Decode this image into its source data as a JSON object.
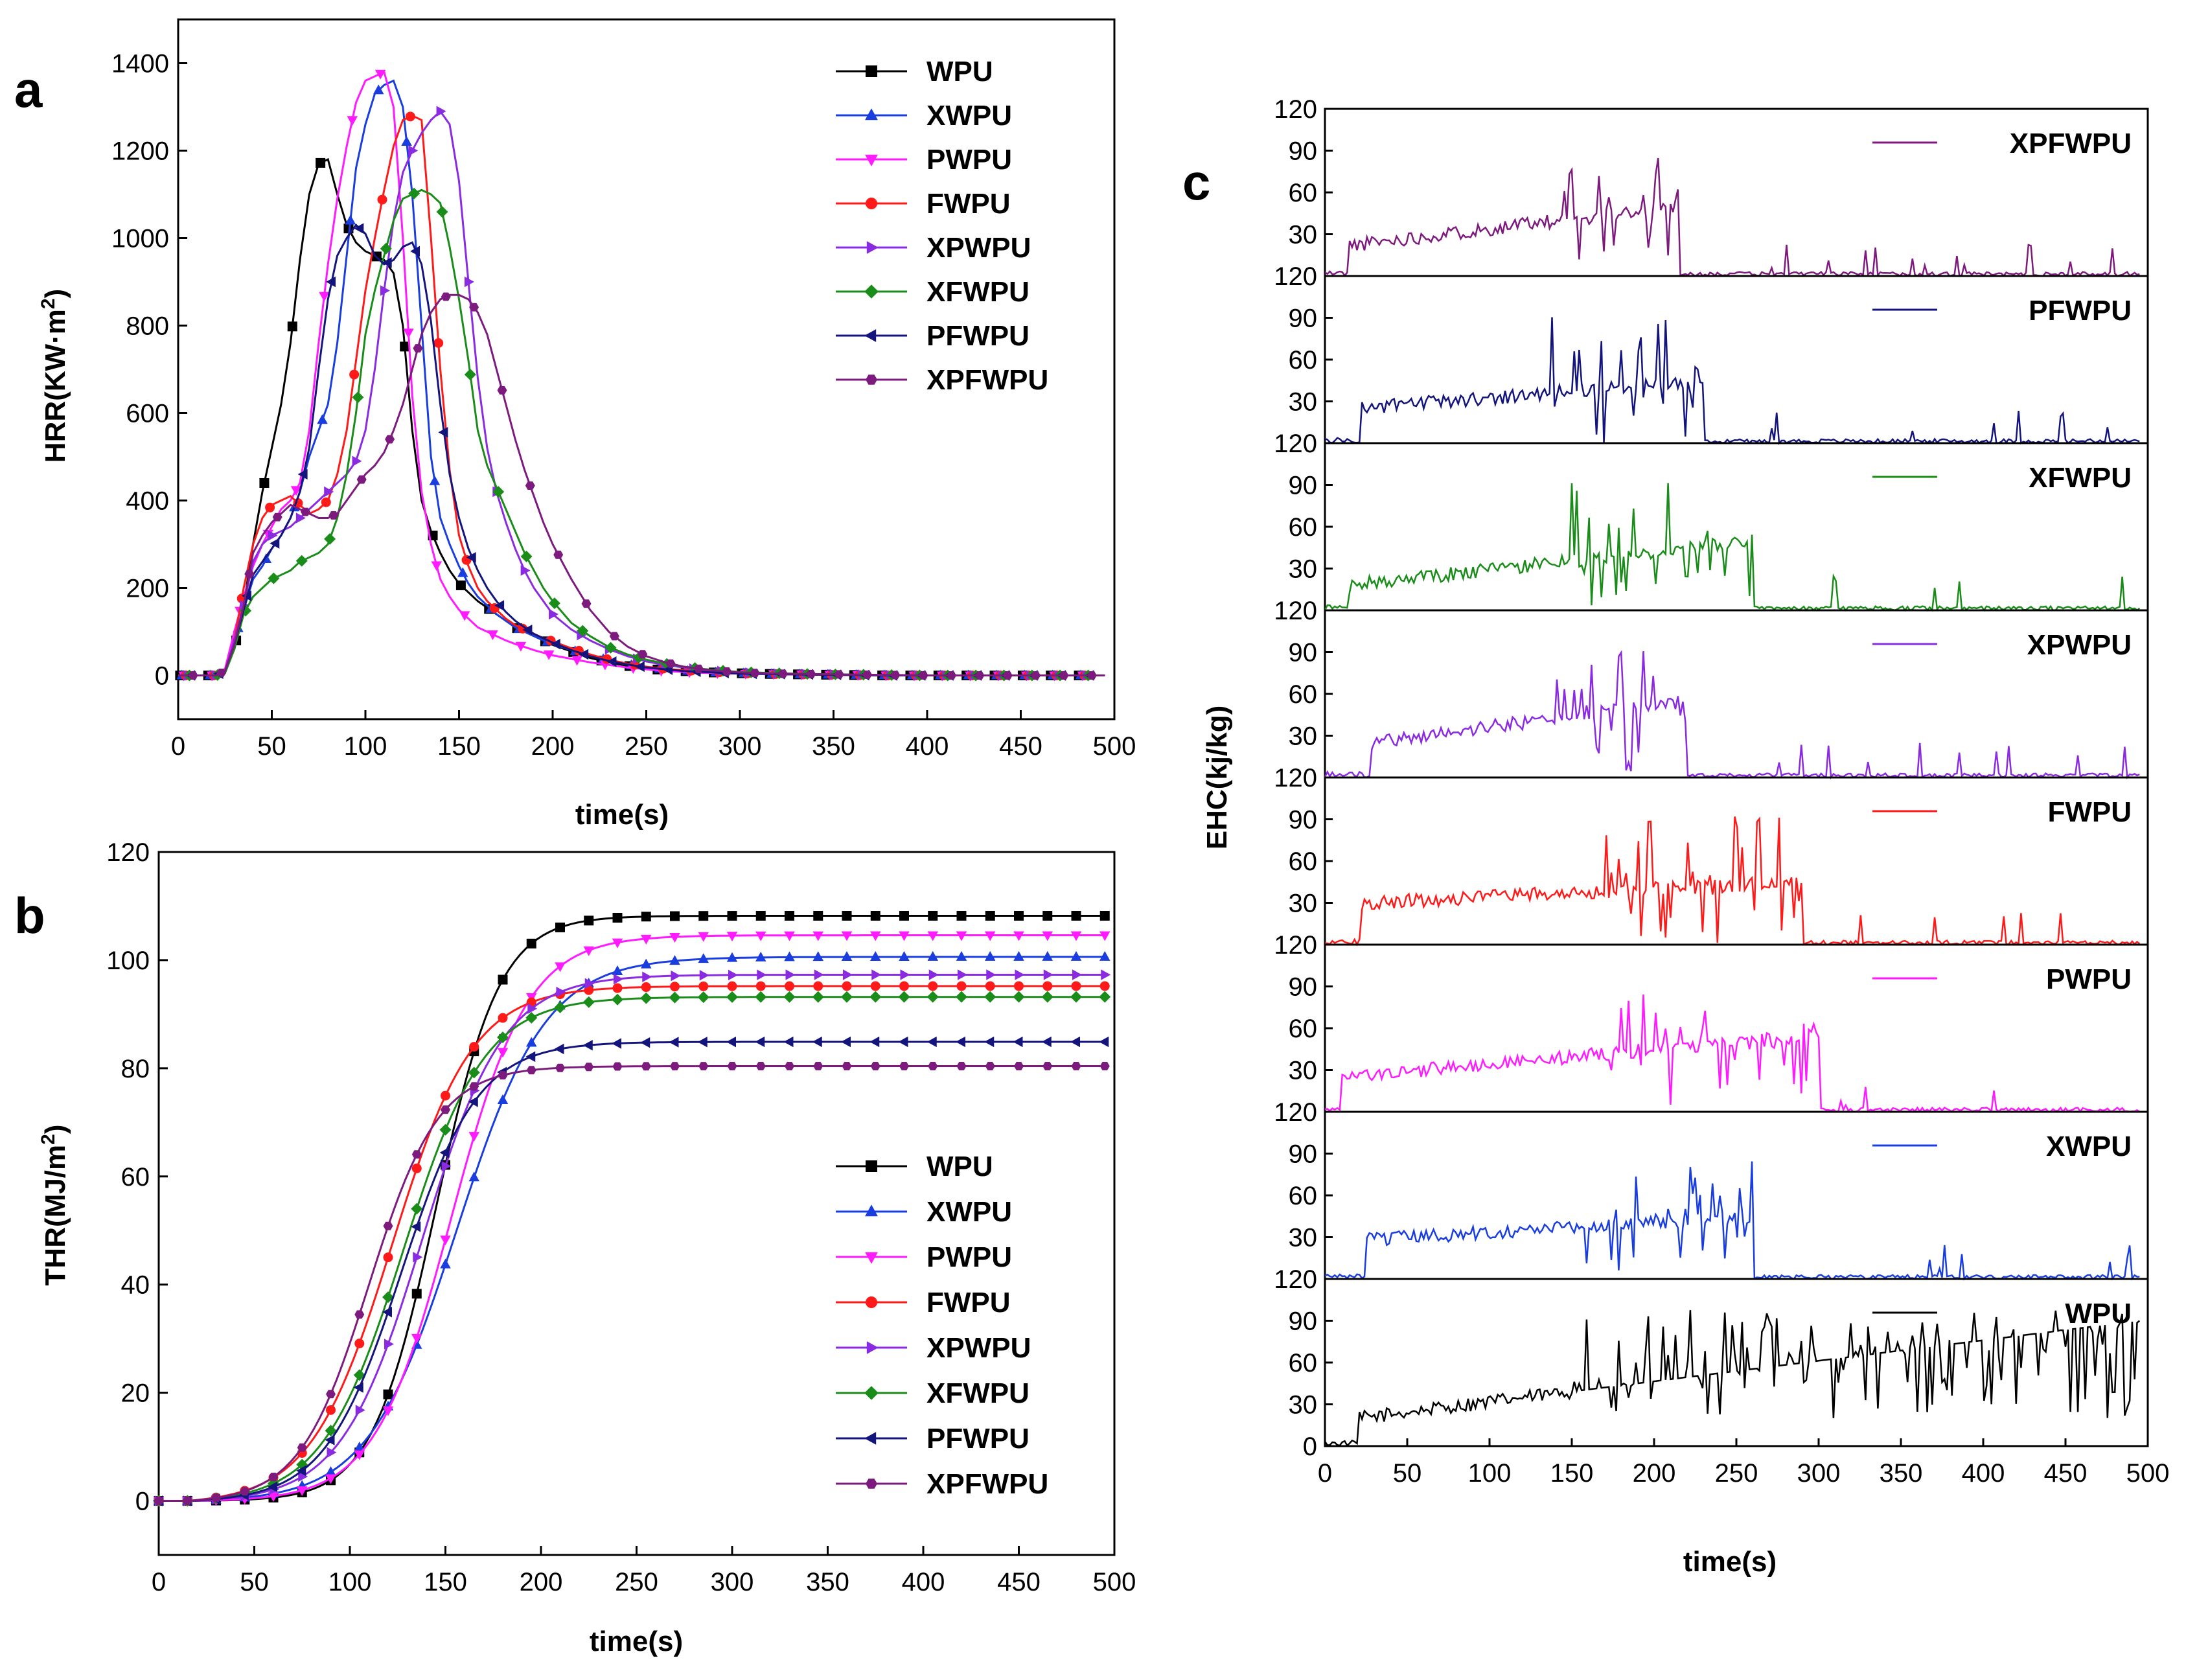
{
  "figure": {
    "panel_labels": [
      "a",
      "b",
      "c"
    ]
  },
  "chart_data": [
    {
      "id": "a",
      "type": "line",
      "xlabel": "time(s)",
      "ylabel": "HRR(KW·m",
      "ylabel_sup": "2",
      "ylabel_close": ")",
      "xlim": [
        0,
        500
      ],
      "ylim": [
        -100,
        1500
      ],
      "xticks": [
        0,
        50,
        100,
        150,
        200,
        250,
        300,
        350,
        400,
        450,
        500
      ],
      "yticks": [
        0,
        200,
        400,
        600,
        800,
        1000,
        1200,
        1400
      ],
      "x": [
        0,
        10,
        20,
        25,
        30,
        35,
        40,
        45,
        50,
        55,
        60,
        65,
        70,
        75,
        80,
        85,
        90,
        95,
        100,
        105,
        110,
        115,
        120,
        125,
        130,
        135,
        140,
        145,
        150,
        155,
        160,
        165,
        170,
        175,
        180,
        185,
        190,
        195,
        200,
        210,
        220,
        230,
        240,
        250,
        260,
        270,
        280,
        290,
        300,
        320,
        340,
        360,
        380,
        400,
        420,
        440,
        460,
        480,
        495
      ],
      "series": [
        {
          "name": "WPU",
          "color": "#000000",
          "marker": "square",
          "values": [
            0,
            0,
            0,
            10,
            60,
            160,
            300,
            420,
            520,
            620,
            760,
            950,
            1100,
            1170,
            1180,
            1100,
            1030,
            990,
            970,
            960,
            950,
            920,
            800,
            560,
            400,
            330,
            280,
            240,
            210,
            190,
            170,
            155,
            140,
            125,
            110,
            100,
            90,
            80,
            70,
            55,
            40,
            30,
            22,
            16,
            12,
            10,
            8,
            6,
            5,
            3,
            2,
            1,
            0,
            0,
            0,
            0,
            0,
            0,
            0
          ]
        },
        {
          "name": "XWPU",
          "color": "#1a3de0",
          "marker": "triangle-up",
          "values": [
            0,
            0,
            0,
            10,
            80,
            150,
            220,
            250,
            290,
            320,
            360,
            420,
            500,
            560,
            620,
            760,
            960,
            1160,
            1260,
            1330,
            1350,
            1360,
            1300,
            1100,
            800,
            500,
            360,
            300,
            250,
            210,
            180,
            160,
            140,
            125,
            110,
            100,
            90,
            80,
            72,
            58,
            45,
            34,
            25,
            18,
            14,
            11,
            8,
            6,
            5,
            3,
            2,
            1,
            0,
            0,
            0,
            0,
            0,
            0,
            0
          ]
        },
        {
          "name": "PWPU",
          "color": "#ff1aff",
          "marker": "triangle-down",
          "values": [
            0,
            0,
            0,
            15,
            100,
            180,
            250,
            300,
            340,
            380,
            400,
            440,
            560,
            760,
            940,
            1090,
            1210,
            1310,
            1360,
            1370,
            1380,
            1300,
            1000,
            640,
            420,
            300,
            220,
            180,
            150,
            130,
            110,
            100,
            90,
            80,
            72,
            65,
            58,
            52,
            46,
            38,
            30,
            24,
            18,
            14,
            10,
            8,
            6,
            5,
            4,
            3,
            2,
            1,
            0,
            0,
            0,
            0,
            0,
            0,
            0
          ]
        },
        {
          "name": "FWPU",
          "color": "#ff1a1a",
          "marker": "circle",
          "values": [
            0,
            0,
            0,
            10,
            80,
            200,
            300,
            360,
            390,
            400,
            410,
            390,
            370,
            380,
            400,
            460,
            560,
            720,
            880,
            1000,
            1110,
            1210,
            1270,
            1280,
            1270,
            1000,
            700,
            470,
            320,
            250,
            200,
            170,
            150,
            130,
            115,
            105,
            95,
            85,
            78,
            62,
            48,
            36,
            27,
            20,
            15,
            12,
            9,
            7,
            5,
            3,
            2,
            1,
            0,
            0,
            0,
            0,
            0,
            0,
            0
          ]
        },
        {
          "name": "XPWPU",
          "color": "#8a2be2",
          "marker": "triangle-right",
          "values": [
            0,
            0,
            0,
            10,
            80,
            160,
            260,
            300,
            320,
            330,
            340,
            360,
            380,
            400,
            420,
            440,
            460,
            490,
            560,
            700,
            880,
            1040,
            1150,
            1200,
            1240,
            1270,
            1290,
            1260,
            1130,
            900,
            680,
            520,
            420,
            350,
            290,
            240,
            200,
            170,
            140,
            105,
            80,
            60,
            44,
            32,
            24,
            18,
            13,
            10,
            7,
            4,
            3,
            2,
            1,
            0,
            0,
            0,
            0,
            0,
            0
          ]
        },
        {
          "name": "XFWPU",
          "color": "#1a8c1a",
          "marker": "diamond",
          "values": [
            0,
            0,
            0,
            5,
            60,
            140,
            180,
            200,
            220,
            230,
            240,
            260,
            270,
            280,
            300,
            360,
            460,
            600,
            780,
            880,
            960,
            1040,
            1090,
            1100,
            1110,
            1100,
            1080,
            980,
            860,
            720,
            560,
            480,
            430,
            380,
            330,
            280,
            240,
            200,
            170,
            120,
            90,
            65,
            48,
            36,
            27,
            20,
            15,
            11,
            8,
            5,
            3,
            2,
            1,
            0,
            0,
            0,
            0,
            0,
            0
          ]
        },
        {
          "name": "PFWPU",
          "color": "#14147d",
          "marker": "triangle-left",
          "values": [
            0,
            0,
            0,
            10,
            70,
            150,
            230,
            260,
            290,
            320,
            360,
            420,
            520,
            700,
            860,
            960,
            1000,
            1030,
            1010,
            960,
            940,
            950,
            980,
            990,
            940,
            810,
            620,
            460,
            360,
            290,
            240,
            200,
            170,
            145,
            125,
            110,
            95,
            85,
            75,
            58,
            44,
            33,
            25,
            18,
            14,
            10,
            8,
            6,
            4,
            3,
            2,
            1,
            0,
            0,
            0,
            0,
            0,
            0,
            0
          ]
        },
        {
          "name": "XPFWPU",
          "color": "#7d1a7d",
          "marker": "hexagon",
          "values": [
            0,
            0,
            0,
            10,
            70,
            160,
            280,
            320,
            350,
            370,
            390,
            380,
            370,
            360,
            360,
            370,
            400,
            430,
            460,
            480,
            510,
            560,
            620,
            700,
            780,
            830,
            860,
            870,
            870,
            860,
            830,
            780,
            700,
            620,
            540,
            470,
            410,
            350,
            300,
            220,
            150,
            100,
            66,
            44,
            30,
            20,
            14,
            10,
            7,
            4,
            3,
            2,
            1,
            0,
            0,
            0,
            0,
            0,
            0
          ]
        }
      ]
    },
    {
      "id": "b",
      "type": "line",
      "xlabel": "time(s)",
      "ylabel": "THR(MJ/m",
      "ylabel_sup": "2",
      "ylabel_close": ")",
      "xlim": [
        0,
        500
      ],
      "ylim": [
        -10,
        120
      ],
      "xticks": [
        0,
        50,
        100,
        150,
        200,
        250,
        300,
        350,
        400,
        450,
        500
      ],
      "yticks": [
        0,
        20,
        40,
        60,
        80,
        100,
        120
      ],
      "series": [
        {
          "name": "WPU",
          "color": "#000000",
          "marker": "square",
          "t0": 145,
          "k": 0.06,
          "final": 108.2
        },
        {
          "name": "XWPU",
          "color": "#1a3de0",
          "marker": "triangle-up",
          "t0": 156,
          "k": 0.043,
          "final": 100.6
        },
        {
          "name": "PWPU",
          "color": "#ff1aff",
          "marker": "triangle-down",
          "t0": 153,
          "k": 0.05,
          "final": 104.6
        },
        {
          "name": "FWPU",
          "color": "#ff1a1a",
          "marker": "circle",
          "t0": 122,
          "k": 0.047,
          "final": 95.2
        },
        {
          "name": "XPWPU",
          "color": "#8a2be2",
          "marker": "triangle-right",
          "t0": 138,
          "k": 0.047,
          "final": 97.3
        },
        {
          "name": "XFWPU",
          "color": "#1a8c1a",
          "marker": "diamond",
          "t0": 128,
          "k": 0.047,
          "final": 93.2
        },
        {
          "name": "PFWPU",
          "color": "#14147d",
          "marker": "triangle-left",
          "t0": 127,
          "k": 0.05,
          "final": 84.9
        },
        {
          "name": "XPFWPU",
          "color": "#7d1a7d",
          "marker": "hexagon",
          "t0": 110,
          "k": 0.055,
          "final": 80.4
        }
      ]
    },
    {
      "id": "c",
      "type": "line",
      "xlabel": "time(s)",
      "ylabel": "EHC(kj/kg)",
      "xlim": [
        0,
        500
      ],
      "ylim": [
        0,
        120
      ],
      "xticks": [
        0,
        50,
        100,
        150,
        200,
        250,
        300,
        350,
        400,
        450,
        500
      ],
      "yticks_top": [
        120,
        90,
        60,
        30
      ],
      "yticks_bottom": [
        0,
        30,
        60,
        90,
        120
      ],
      "series": [
        {
          "name": "XPFWPU",
          "color": "#7d1a7d",
          "onset": 15,
          "end": 215,
          "base_start": 22,
          "base_end": 50,
          "spike_max": 88,
          "seed": 11
        },
        {
          "name": "PFWPU",
          "color": "#14147d",
          "onset": 22,
          "end": 230,
          "base_start": 25,
          "base_end": 45,
          "spike_max": 95,
          "seed": 23
        },
        {
          "name": "XFWPU",
          "color": "#1a8c1a",
          "onset": 15,
          "end": 260,
          "base_start": 18,
          "base_end": 50,
          "spike_max": 92,
          "seed": 37
        },
        {
          "name": "XPWPU",
          "color": "#8a2be2",
          "onset": 28,
          "end": 220,
          "base_start": 25,
          "base_end": 55,
          "spike_max": 92,
          "seed": 41
        },
        {
          "name": "FWPU",
          "color": "#ff1a1a",
          "onset": 22,
          "end": 290,
          "base_start": 30,
          "base_end": 45,
          "spike_max": 92,
          "seed": 53
        },
        {
          "name": "PWPU",
          "color": "#ff1aff",
          "onset": 10,
          "end": 300,
          "base_start": 25,
          "base_end": 55,
          "spike_max": 85,
          "seed": 67
        },
        {
          "name": "XWPU",
          "color": "#1a3de0",
          "onset": 25,
          "end": 260,
          "base_start": 28,
          "base_end": 45,
          "spike_max": 90,
          "seed": 79
        },
        {
          "name": "WPU",
          "color": "#000000",
          "onset": 20,
          "end": 495,
          "base_start": 20,
          "base_end": 90,
          "spike_max": 98,
          "seed": 97
        }
      ]
    }
  ]
}
